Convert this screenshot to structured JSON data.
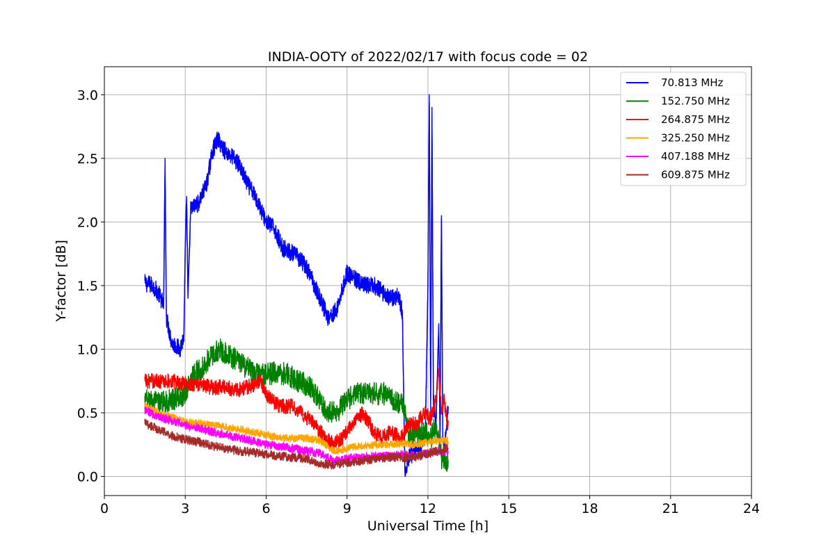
{
  "chart_data": {
    "type": "line",
    "title": "INDIA-OOTY of 2022/02/17 with focus code = 02",
    "xlabel": "Universal Time [h]",
    "ylabel": "Y-factor [dB]",
    "xlim": [
      0,
      24
    ],
    "ylim": [
      -0.15,
      3.22
    ],
    "xticks": [
      "0",
      "3",
      "6",
      "9",
      "12",
      "15",
      "18",
      "21",
      "24"
    ],
    "xtick_values": [
      0,
      3,
      6,
      9,
      12,
      15,
      18,
      21,
      24
    ],
    "yticks": [
      "0.0",
      "0.5",
      "1.0",
      "1.5",
      "2.0",
      "2.5",
      "3.0"
    ],
    "ytick_values": [
      0.0,
      0.5,
      1.0,
      1.5,
      2.0,
      2.5,
      3.0
    ],
    "grid": true,
    "legend_position": "top-right",
    "series": [
      {
        "name": "  70.813 MHz",
        "color": "#0000ff",
        "noise": 0.07,
        "x": [
          1.5,
          1.8,
          2.0,
          2.2,
          2.25,
          2.3,
          2.5,
          2.8,
          2.95,
          3.0,
          3.05,
          3.1,
          3.2,
          3.5,
          3.8,
          4.0,
          4.2,
          4.5,
          4.8,
          5.0,
          5.3,
          5.6,
          6.0,
          6.3,
          6.6,
          7.0,
          7.3,
          7.6,
          8.0,
          8.3,
          8.6,
          8.8,
          9.0,
          9.3,
          9.6,
          10.0,
          10.3,
          10.6,
          10.9,
          11.05,
          11.15,
          11.3,
          11.6,
          11.9,
          12.0,
          12.05,
          12.1,
          12.15,
          12.2,
          12.3,
          12.4,
          12.45,
          12.5,
          12.55,
          12.6,
          12.7,
          12.75
        ],
        "y": [
          1.52,
          1.5,
          1.44,
          1.35,
          2.5,
          1.25,
          1.05,
          1.0,
          1.1,
          1.8,
          2.2,
          1.4,
          2.1,
          2.15,
          2.3,
          2.55,
          2.65,
          2.55,
          2.5,
          2.45,
          2.3,
          2.2,
          2.0,
          1.95,
          1.8,
          1.75,
          1.7,
          1.6,
          1.4,
          1.25,
          1.3,
          1.45,
          1.6,
          1.55,
          1.5,
          1.5,
          1.45,
          1.4,
          1.42,
          1.3,
          0.0,
          0.15,
          0.2,
          0.3,
          1.5,
          3.0,
          0.5,
          2.9,
          0.6,
          0.4,
          1.2,
          0.3,
          2.05,
          0.3,
          0.2,
          0.4,
          0.55
        ]
      },
      {
        "name": "152.750 MHz",
        "color": "#008000",
        "noise": 0.09,
        "x": [
          1.5,
          2.0,
          2.5,
          3.0,
          3.3,
          3.6,
          4.0,
          4.3,
          4.6,
          5.0,
          5.3,
          5.6,
          6.0,
          6.4,
          6.8,
          7.2,
          7.6,
          8.0,
          8.3,
          8.6,
          9.0,
          9.3,
          9.6,
          10.0,
          10.4,
          10.8,
          11.1,
          11.3,
          11.6,
          11.9,
          12.1,
          12.3,
          12.5,
          12.75
        ],
        "y": [
          0.6,
          0.58,
          0.6,
          0.65,
          0.8,
          0.85,
          0.95,
          1.0,
          0.95,
          0.9,
          0.85,
          0.8,
          0.8,
          0.82,
          0.8,
          0.75,
          0.7,
          0.6,
          0.5,
          0.5,
          0.6,
          0.65,
          0.65,
          0.65,
          0.65,
          0.6,
          0.55,
          0.3,
          0.32,
          0.35,
          0.3,
          0.4,
          0.15,
          0.1
        ]
      },
      {
        "name": "264.875 MHz",
        "color": "#ff0000",
        "noise": 0.06,
        "x": [
          1.5,
          2.0,
          2.5,
          3.0,
          3.5,
          4.0,
          4.5,
          5.0,
          5.5,
          5.8,
          6.0,
          6.3,
          6.6,
          7.0,
          7.3,
          7.6,
          8.0,
          8.3,
          8.5,
          8.8,
          9.0,
          9.3,
          9.6,
          10.0,
          10.3,
          10.6,
          11.0,
          11.3,
          11.6,
          11.9,
          12.1,
          12.3,
          12.4,
          12.5,
          12.6,
          12.75
        ],
        "y": [
          0.75,
          0.75,
          0.75,
          0.73,
          0.72,
          0.7,
          0.7,
          0.68,
          0.72,
          0.75,
          0.65,
          0.58,
          0.55,
          0.55,
          0.5,
          0.45,
          0.35,
          0.28,
          0.25,
          0.3,
          0.35,
          0.45,
          0.5,
          0.35,
          0.3,
          0.35,
          0.3,
          0.4,
          0.42,
          0.5,
          0.45,
          0.6,
          0.85,
          0.5,
          0.6,
          0.4
        ]
      },
      {
        "name": "325.250 MHz",
        "color": "#ffa500",
        "noise": 0.03,
        "x": [
          1.5,
          2.0,
          2.5,
          3.0,
          3.5,
          4.0,
          4.5,
          5.0,
          5.5,
          6.0,
          6.5,
          7.0,
          7.5,
          8.0,
          8.5,
          9.0,
          9.5,
          10.0,
          10.5,
          11.0,
          11.5,
          12.0,
          12.4,
          12.75
        ],
        "y": [
          0.56,
          0.5,
          0.47,
          0.43,
          0.42,
          0.4,
          0.39,
          0.37,
          0.35,
          0.33,
          0.3,
          0.3,
          0.3,
          0.28,
          0.2,
          0.22,
          0.24,
          0.25,
          0.25,
          0.26,
          0.25,
          0.27,
          0.28,
          0.28
        ]
      },
      {
        "name": "407.188 MHz",
        "color": "#ff00ff",
        "noise": 0.035,
        "x": [
          1.5,
          2.0,
          2.5,
          3.0,
          3.5,
          4.0,
          4.5,
          5.0,
          5.5,
          6.0,
          6.5,
          7.0,
          7.5,
          8.0,
          8.5,
          9.0,
          9.5,
          10.0,
          10.5,
          11.0,
          11.5,
          12.0,
          12.4,
          12.75
        ],
        "y": [
          0.52,
          0.47,
          0.44,
          0.4,
          0.38,
          0.35,
          0.33,
          0.3,
          0.28,
          0.25,
          0.24,
          0.22,
          0.2,
          0.18,
          0.12,
          0.14,
          0.15,
          0.16,
          0.16,
          0.17,
          0.16,
          0.18,
          0.2,
          0.2
        ]
      },
      {
        "name": "609.875 MHz",
        "color": "#a52a2a",
        "noise": 0.035,
        "x": [
          1.5,
          2.0,
          2.5,
          3.0,
          3.5,
          4.0,
          4.5,
          5.0,
          5.5,
          6.0,
          6.5,
          7.0,
          7.5,
          8.0,
          8.5,
          9.0,
          9.5,
          10.0,
          10.5,
          11.0,
          11.5,
          12.0,
          12.4,
          12.75
        ],
        "y": [
          0.42,
          0.37,
          0.32,
          0.29,
          0.27,
          0.24,
          0.22,
          0.2,
          0.19,
          0.17,
          0.16,
          0.15,
          0.14,
          0.1,
          0.09,
          0.11,
          0.12,
          0.14,
          0.15,
          0.15,
          0.15,
          0.18,
          0.2,
          0.22
        ]
      }
    ]
  }
}
